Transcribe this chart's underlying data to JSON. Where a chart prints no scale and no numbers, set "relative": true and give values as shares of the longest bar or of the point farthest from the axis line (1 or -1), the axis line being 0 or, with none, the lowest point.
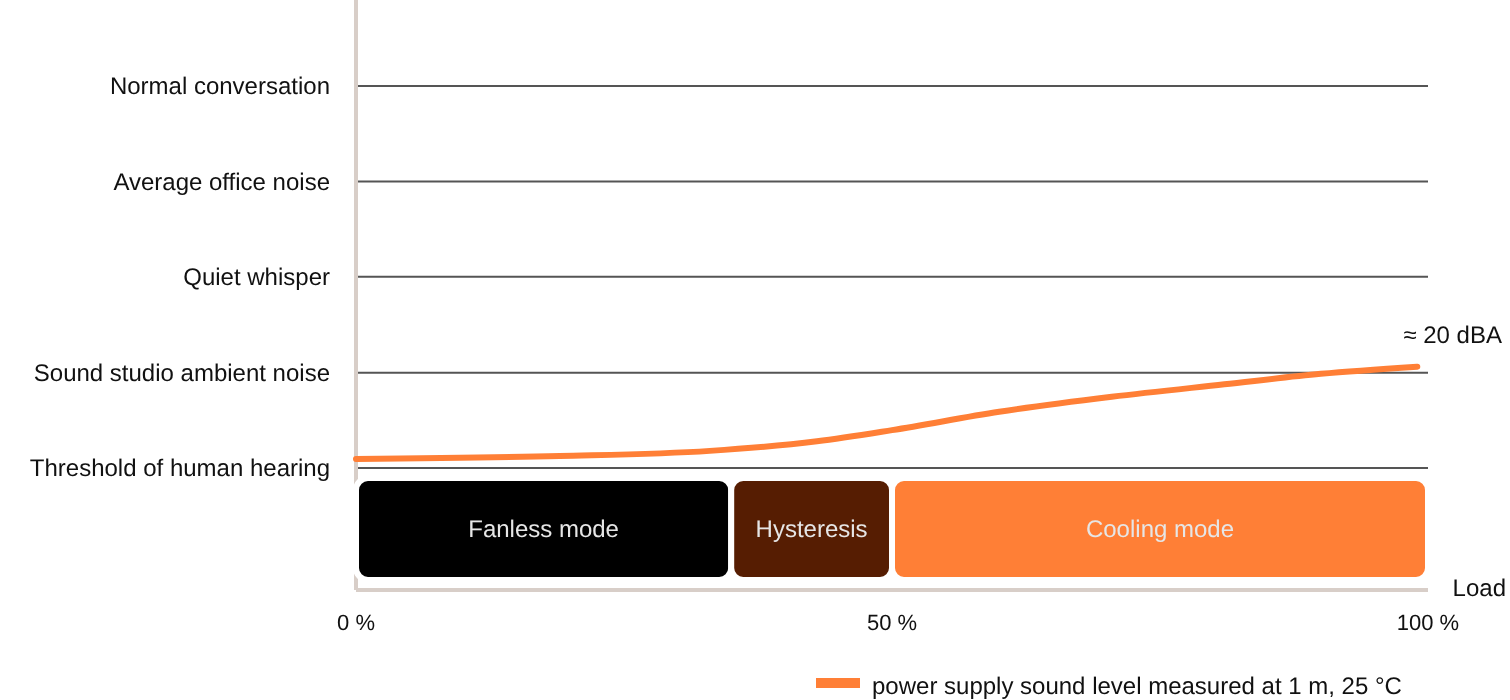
{
  "chart_data": {
    "type": "line",
    "xlabel": "Load",
    "relative": true,
    "x": [
      0,
      19,
      33,
      43,
      50,
      60,
      70.5,
      81,
      90,
      99
    ],
    "series": [
      {
        "name": "power supply sound level measured at 1 m, 25 °C",
        "color": "#ff7f36",
        "values": [
          0.587,
          0.6,
          0.623,
          0.666,
          0.716,
          0.798,
          0.865,
          0.921,
          0.968,
          1
        ]
      }
    ],
    "xlim": [
      0,
      100
    ],
    "xticks": [
      {
        "value": 0,
        "label": "0 %"
      },
      {
        "value": 50,
        "label": "50 %"
      },
      {
        "value": 100,
        "label": "100 %"
      }
    ],
    "legend": "bottom right",
    "marker": "none",
    "line_style": "solid",
    "ref_lines": [
      {
        "axis": "y",
        "value": 0.546,
        "label": "Threshold of human hearing",
        "color": "#555555"
      },
      {
        "axis": "y",
        "value": 0.973,
        "label": "Sound studio ambient noise",
        "color": "#555555"
      },
      {
        "axis": "y",
        "value": 1.403,
        "label": "Quiet whisper",
        "color": "#555555"
      },
      {
        "axis": "y",
        "value": 1.829,
        "label": "Average office noise",
        "color": "#555555"
      },
      {
        "axis": "y",
        "value": 2.257,
        "label": "Normal conversation",
        "color": "#555555"
      }
    ],
    "bands": [
      {
        "axis": "x",
        "from": 0,
        "to": 35,
        "label": "Fanless mode",
        "color": "#000000"
      },
      {
        "axis": "x",
        "from": 35,
        "to": 50,
        "label": "Hysteresis",
        "color": "#561d02"
      },
      {
        "axis": "x",
        "from": 50,
        "to": 100,
        "label": "Cooling mode",
        "color": "#ff7f36"
      }
    ],
    "annotations": [
      "≈ 20 dBA"
    ]
  }
}
